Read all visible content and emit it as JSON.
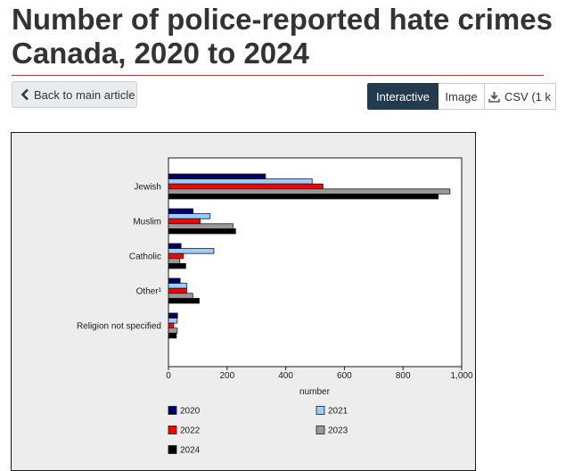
{
  "page": {
    "title_line1": "Number of police-reported hate crimes",
    "title_line2": "Canada, 2020 to 2024"
  },
  "nav": {
    "back_label": "Back to main article",
    "tabs": [
      {
        "label": "Interactive",
        "active": true
      },
      {
        "label": "Image",
        "active": false
      },
      {
        "label": "CSV (1 k",
        "active": false
      }
    ]
  },
  "colors": {
    "accent_rule": "#af3c43",
    "active_tab": "#243a4f",
    "series": [
      "#000066",
      "#99ccff",
      "#ff0000",
      "#999999",
      "#000000"
    ]
  },
  "chart_data": {
    "type": "bar",
    "orientation": "horizontal",
    "categories": [
      "Jewish",
      "Muslim",
      "Catholic",
      "Other¹",
      "Religion not specified"
    ],
    "series": [
      {
        "name": "2020",
        "color": "#000066",
        "values": [
          331,
          84,
          43,
          40,
          31
        ]
      },
      {
        "name": "2021",
        "color": "#99ccff",
        "values": [
          490,
          142,
          155,
          63,
          30
        ]
      },
      {
        "name": "2022",
        "color": "#ff0000",
        "values": [
          527,
          108,
          51,
          62,
          18
        ]
      },
      {
        "name": "2023",
        "color": "#999999",
        "values": [
          960,
          220,
          39,
          83,
          30
        ]
      },
      {
        "name": "2024",
        "color": "#000000",
        "values": [
          920,
          229,
          59,
          105,
          27
        ]
      }
    ],
    "xlabel": "number",
    "xlim": [
      0,
      1000
    ],
    "xticks": [
      0,
      200,
      400,
      600,
      800,
      1000
    ],
    "xtick_labels": [
      "0",
      "200",
      "400",
      "600",
      "800",
      "1,000"
    ],
    "grid": false,
    "legend_position": "bottom"
  }
}
